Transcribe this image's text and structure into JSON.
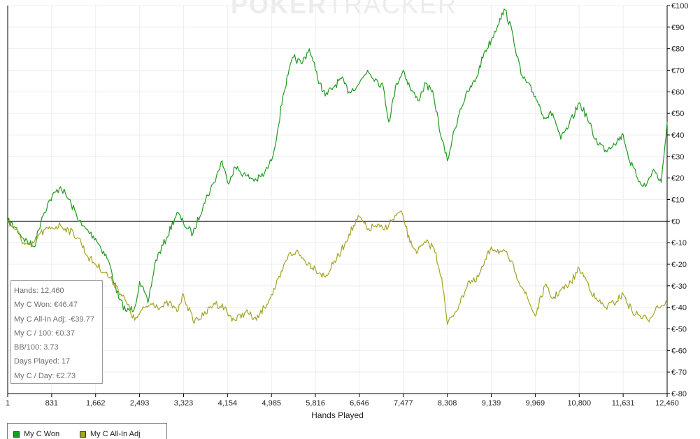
{
  "watermark": {
    "brand_a": "POKER",
    "brand_b": "TRACKER"
  },
  "stats": [
    "Hands: 12,460",
    "My C Won: €46.47",
    "My C All-In Adj: -€39.77",
    "My C / 100: €0.37",
    "BB/100: 3.73",
    "Days Played: 17",
    "My C / Day: €2.73"
  ],
  "legend": [
    {
      "label": "My C Won",
      "color": "#1f9a1f"
    },
    {
      "label": "My C All-In Adj",
      "color": "#a3a324"
    }
  ],
  "chart_data": {
    "type": "line",
    "title": "",
    "xlabel": "Hands Played",
    "ylabel": "",
    "xlim": [
      1,
      12460
    ],
    "ylim": [
      -80,
      100
    ],
    "x_ticks": [
      "1",
      "831",
      "1,662",
      "2,493",
      "3,323",
      "4,154",
      "4,985",
      "5,816",
      "6,646",
      "7,477",
      "8,308",
      "9,139",
      "9,969",
      "10,800",
      "11,631",
      "12,460"
    ],
    "y_ticks": [
      "€100",
      "€90",
      "€80",
      "€70",
      "€60",
      "€50",
      "€40",
      "€30",
      "€20",
      "€10",
      "€0",
      "€-10",
      "€-20",
      "€-30",
      "€-40",
      "€-50",
      "€-60",
      "€-70",
      "€-80"
    ],
    "grid": true,
    "legend_position": "bottom-left",
    "series": [
      {
        "name": "My C Won",
        "color": "#1f9a1f",
        "x": [
          1,
          150,
          300,
          500,
          650,
          800,
          1000,
          1200,
          1400,
          1662,
          1900,
          2100,
          2250,
          2400,
          2493,
          2650,
          2800,
          3000,
          3200,
          3323,
          3500,
          3700,
          3900,
          4050,
          4154,
          4300,
          4500,
          4700,
          4850,
          4985,
          5100,
          5200,
          5300,
          5400,
          5550,
          5700,
          5816,
          5900,
          6000,
          6150,
          6300,
          6450,
          6646,
          6800,
          6950,
          7100,
          7200,
          7350,
          7477,
          7600,
          7750,
          7900,
          8050,
          8200,
          8308,
          8400,
          8550,
          8700,
          8850,
          9000,
          9139,
          9300,
          9400,
          9550,
          9700,
          9969,
          10150,
          10300,
          10450,
          10600,
          10800,
          10950,
          11100,
          11300,
          11450,
          11631,
          11750,
          11900,
          12050,
          12200,
          12350,
          12460
        ],
        "values": [
          0,
          -3,
          -8,
          -12,
          2,
          10,
          16,
          8,
          -2,
          -8,
          -18,
          -36,
          -42,
          -40,
          -28,
          -38,
          -18,
          -8,
          4,
          -1,
          -6,
          8,
          18,
          28,
          18,
          25,
          21,
          19,
          22,
          28,
          42,
          58,
          68,
          76,
          73,
          80,
          70,
          64,
          58,
          62,
          66,
          60,
          64,
          70,
          66,
          62,
          46,
          64,
          70,
          62,
          56,
          64,
          58,
          38,
          28,
          38,
          52,
          60,
          66,
          78,
          84,
          94,
          98,
          86,
          68,
          58,
          48,
          50,
          38,
          44,
          55,
          48,
          38,
          33,
          36,
          40,
          28,
          20,
          16,
          24,
          18,
          46
        ]
      },
      {
        "name": "My C All-In Adj",
        "color": "#a3a324",
        "x": [
          1,
          150,
          300,
          450,
          600,
          831,
          1000,
          1150,
          1350,
          1500,
          1662,
          1850,
          2050,
          2250,
          2400,
          2493,
          2600,
          2750,
          2900,
          3050,
          3200,
          3323,
          3500,
          3700,
          3900,
          4100,
          4154,
          4300,
          4500,
          4700,
          4850,
          4985,
          5150,
          5300,
          5450,
          5600,
          5816,
          6000,
          6150,
          6300,
          6450,
          6646,
          6800,
          6950,
          7100,
          7250,
          7400,
          7477,
          7600,
          7750,
          7900,
          8050,
          8200,
          8308,
          8400,
          8550,
          8700,
          8850,
          9000,
          9139,
          9300,
          9450,
          9600,
          9750,
          9969,
          10150,
          10300,
          10450,
          10600,
          10800,
          10950,
          11100,
          11300,
          11450,
          11631,
          11800,
          11950,
          12100,
          12250,
          12460
        ],
        "values": [
          0,
          -4,
          -10,
          -12,
          -6,
          -3,
          -2,
          -4,
          -8,
          -16,
          -20,
          -24,
          -30,
          -38,
          -46,
          -43,
          -40,
          -38,
          -40,
          -38,
          -42,
          -34,
          -46,
          -44,
          -38,
          -40,
          -43,
          -46,
          -42,
          -46,
          -40,
          -34,
          -26,
          -16,
          -14,
          -18,
          -22,
          -26,
          -20,
          -14,
          -6,
          2,
          -4,
          -2,
          -4,
          0,
          4,
          2,
          -10,
          -14,
          -10,
          -12,
          -26,
          -48,
          -44,
          -38,
          -28,
          -28,
          -20,
          -12,
          -14,
          -16,
          -24,
          -32,
          -44,
          -30,
          -36,
          -32,
          -30,
          -22,
          -28,
          -36,
          -40,
          -38,
          -34,
          -42,
          -44,
          -46,
          -40,
          -38
        ]
      }
    ]
  }
}
